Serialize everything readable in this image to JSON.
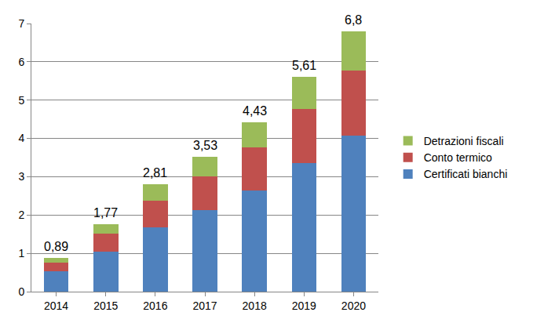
{
  "chart_data": {
    "type": "bar",
    "stacked": true,
    "categories": [
      "2014",
      "2015",
      "2016",
      "2017",
      "2018",
      "2019",
      "2020"
    ],
    "series": [
      {
        "name": "Certificati bianchi",
        "color": "#4f81bd",
        "values": [
          0.53,
          1.05,
          1.68,
          2.12,
          2.65,
          3.36,
          4.08
        ]
      },
      {
        "name": "Conto termico",
        "color": "#c0504d",
        "values": [
          0.22,
          0.47,
          0.7,
          0.88,
          1.11,
          1.4,
          1.7
        ]
      },
      {
        "name": "Detrazioni fiscali",
        "color": "#9bbb59",
        "values": [
          0.14,
          0.25,
          0.43,
          0.53,
          0.67,
          0.85,
          1.02
        ]
      }
    ],
    "totals": [
      0.89,
      1.77,
      2.81,
      3.53,
      4.43,
      5.61,
      6.8
    ],
    "total_labels": [
      "0,89",
      "1,77",
      "2,81",
      "3,53",
      "4,43",
      "5,61",
      "6,8"
    ],
    "ylim": [
      0,
      7
    ],
    "yticks": [
      0,
      1,
      2,
      3,
      4,
      5,
      6,
      7
    ],
    "grid": true,
    "legend": "right"
  }
}
